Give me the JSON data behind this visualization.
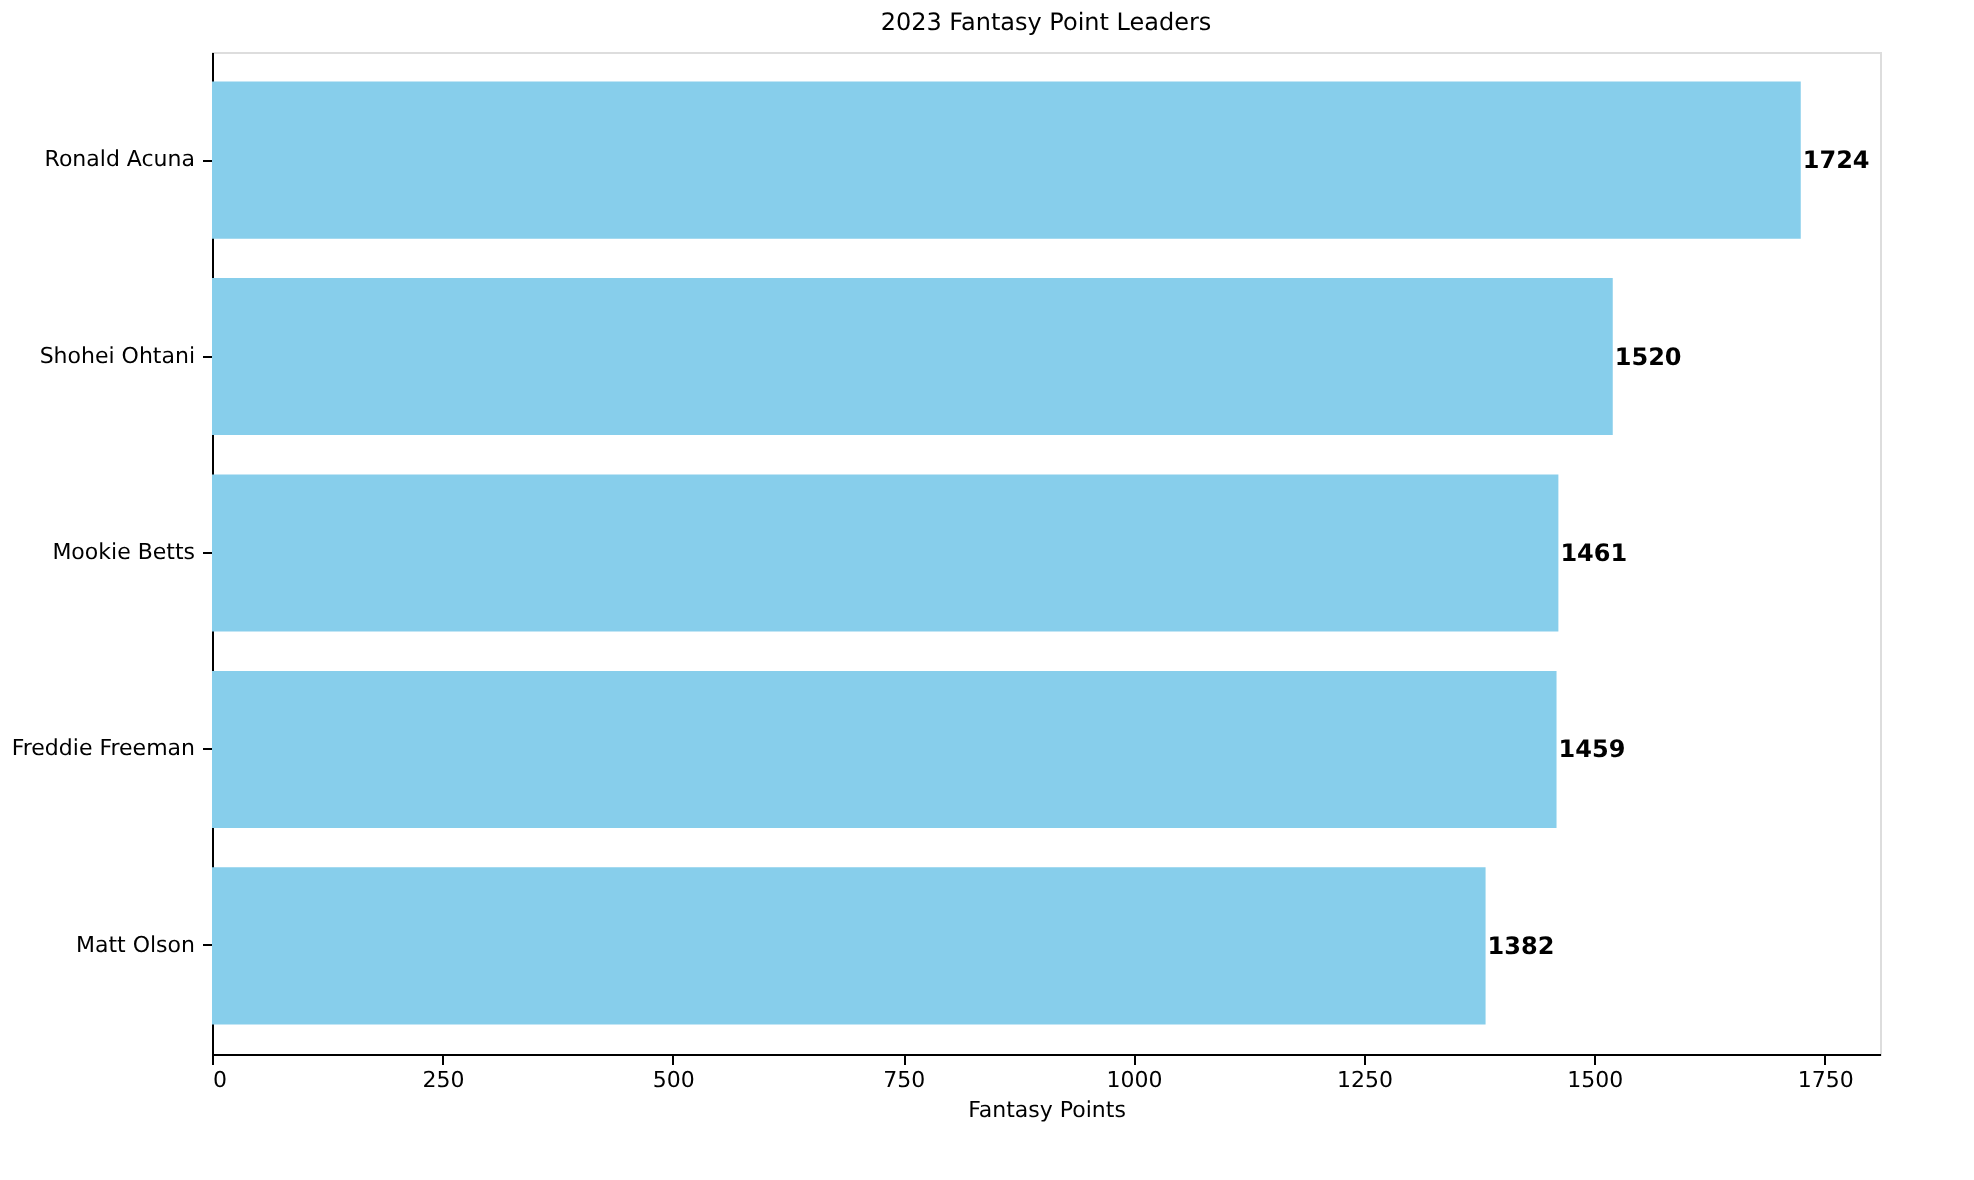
{
  "chart_data": {
    "type": "bar",
    "orientation": "horizontal",
    "title": "2023 Fantasy Point Leaders",
    "xlabel": "Fantasy Points",
    "categories": [
      "Ronald Acuna",
      "Shohei Ohtani",
      "Mookie Betts",
      "Freddie Freeman",
      "Matt Olson"
    ],
    "values": [
      1724,
      1520,
      1461,
      1459,
      1382
    ],
    "color": "#87ceeb",
    "data_labels": true,
    "xlim": [
      0,
      1810
    ],
    "xticks": [
      0,
      250,
      500,
      750,
      1000,
      1250,
      1500,
      1750
    ],
    "grid": false
  }
}
